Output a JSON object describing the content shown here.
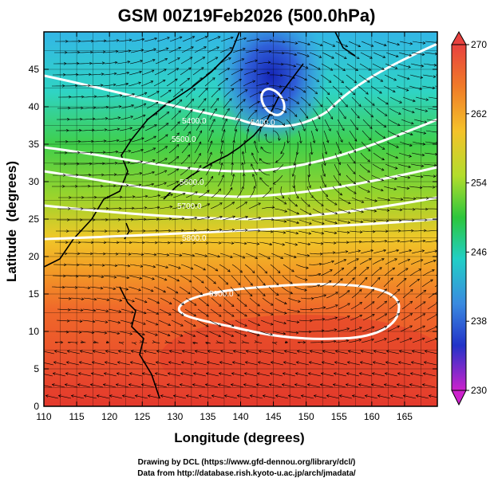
{
  "chart_data": {
    "type": "heatmap",
    "title": "GSM 00Z19Feb2026 (500.0hPa)",
    "xlabel": "Longitude (degrees)",
    "ylabel": "Latitude  (degrees)",
    "xlim": [
      110,
      170
    ],
    "ylim": [
      0,
      50
    ],
    "x_ticks": [
      "110",
      "115",
      "120",
      "125",
      "130",
      "135",
      "140",
      "145",
      "150",
      "155",
      "160",
      "165"
    ],
    "y_ticks": [
      "0",
      "5",
      "10",
      "15",
      "20",
      "25",
      "30",
      "35",
      "40",
      "45"
    ],
    "colorbar": {
      "min": 230,
      "max": 270,
      "labels": [
        "270",
        "262",
        "254",
        "246",
        "238",
        "230"
      ]
    },
    "contour_labels": [
      "5400.0",
      "5400.0",
      "5500.0",
      "5600.0",
      "5700.0",
      "5800.0",
      "5900.0"
    ],
    "credits": [
      "Drawing by DCL (https://www.gfd-dennou.org/library/dcl/)",
      "Data from http://database.rish.kyoto-u.ac.jp/arch/jmadata/"
    ]
  }
}
